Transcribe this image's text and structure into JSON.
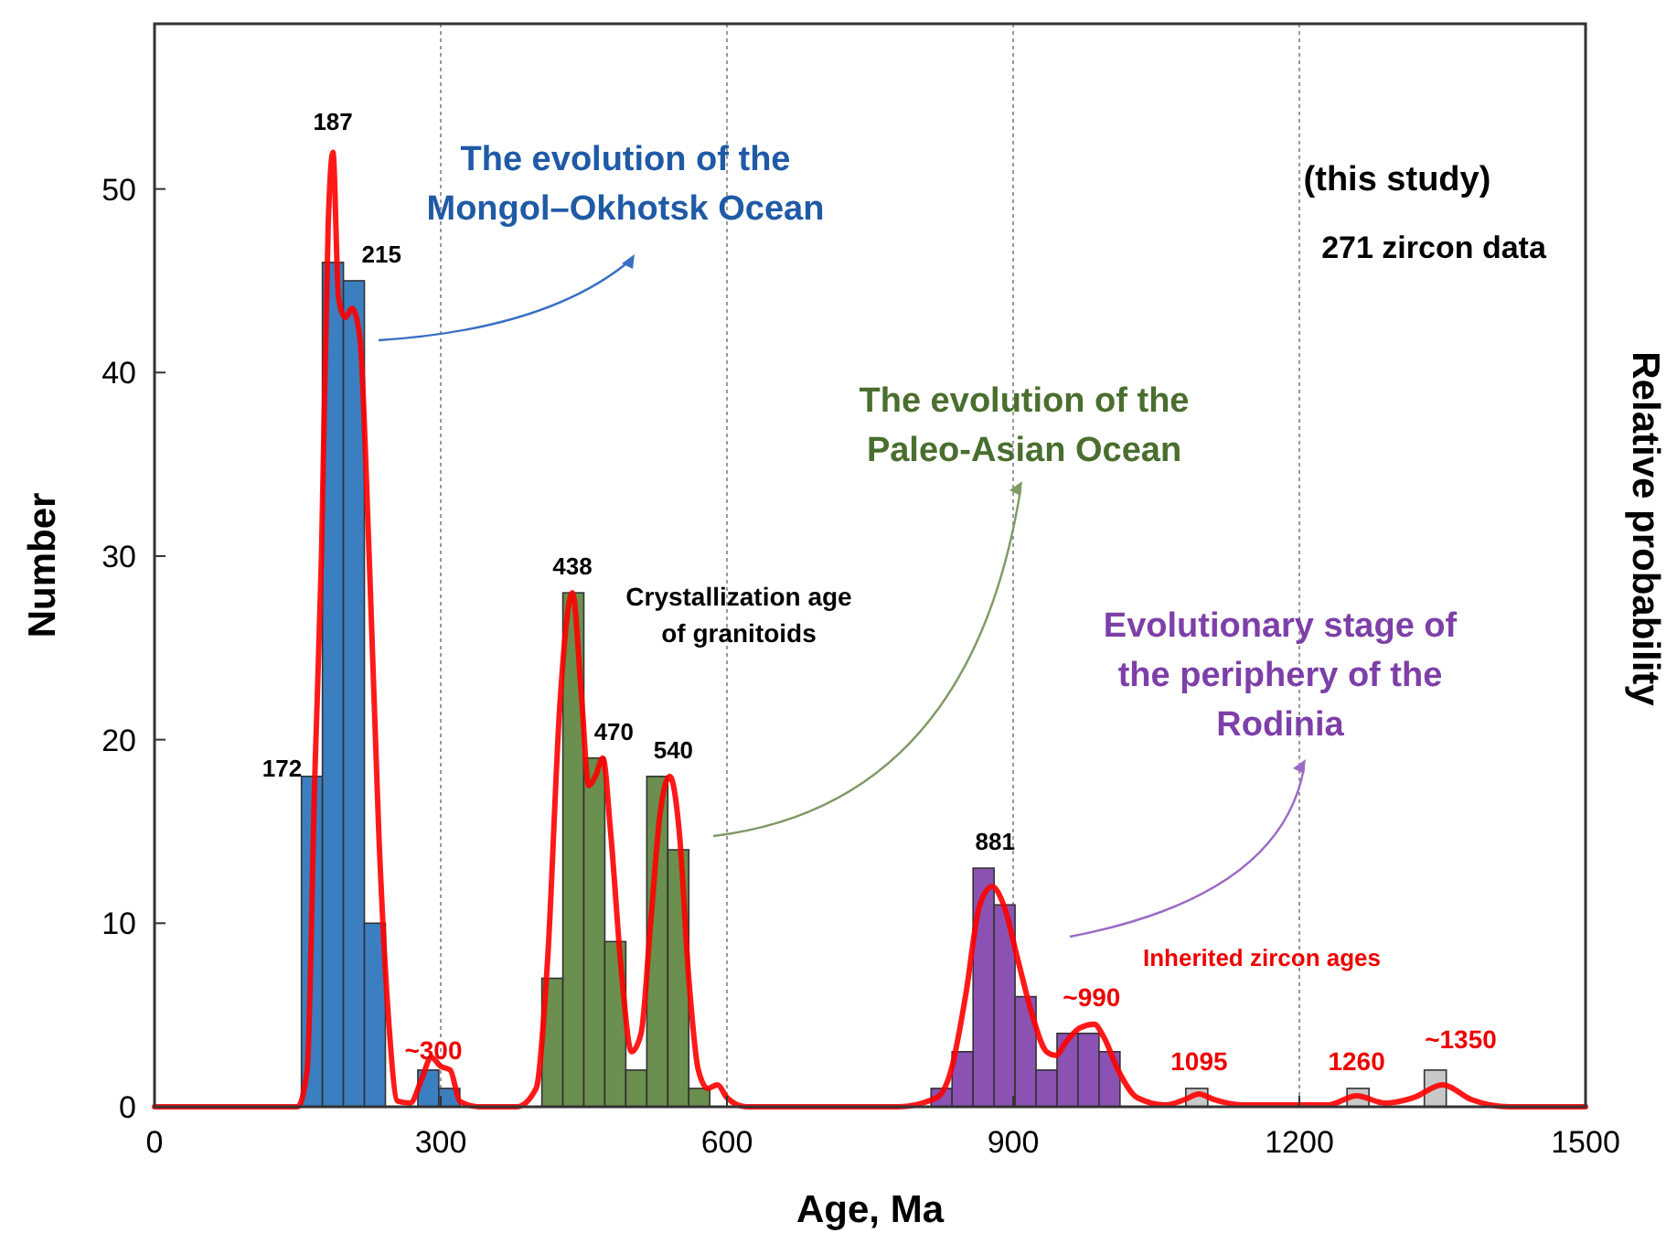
{
  "chart_data": {
    "type": "histogram",
    "xlabel": "Age, Ma",
    "ylabel": "Number",
    "y2label": "Relative probability",
    "bins": [
      154,
      176,
      198,
      220,
      242,
      276,
      298,
      320,
      406,
      428,
      450,
      472,
      494,
      516,
      538,
      560,
      582,
      814,
      836,
      858,
      880,
      902,
      924,
      946,
      968,
      990,
      1012,
      1081,
      1104,
      1250,
      1273,
      1331,
      1354
    ],
    "values": [
      18,
      46,
      45,
      10,
      0,
      2,
      1,
      0,
      7,
      28,
      19,
      9,
      2,
      18,
      14,
      1,
      0,
      1,
      3,
      13,
      11,
      6,
      2,
      4,
      4,
      3,
      0,
      1,
      0,
      1,
      0,
      2
    ],
    "colors": [
      "#3b7fc0",
      "#3b7fc0",
      "#3b7fc0",
      "#3b7fc0",
      null,
      "#3b7fc0",
      "#3b7fc0",
      null,
      "#6a8f4f",
      "#6a8f4f",
      "#6a8f4f",
      "#6a8f4f",
      "#6a8f4f",
      "#6a8f4f",
      "#6a8f4f",
      "#6a8f4f",
      null,
      "#8b52b3",
      "#8b52b3",
      "#8b52b3",
      "#8b52b3",
      "#8b52b3",
      "#8b52b3",
      "#8b52b3",
      "#8b52b3",
      "#8b52b3",
      null,
      "#c8c8c8",
      null,
      "#c8c8c8",
      null,
      "#c8c8c8"
    ],
    "series": [
      {
        "type": "line",
        "color": "#ff0000",
        "x": [
          0,
          150,
          160,
          168,
          175,
          182,
          187,
          193,
          200,
          207,
          215,
          225,
          235,
          245,
          255,
          268,
          280,
          290,
          300,
          310,
          320,
          340,
          380,
          400,
          412,
          425,
          438,
          448,
          455,
          462,
          470,
          478,
          490,
          500,
          510,
          520,
          530,
          540,
          550,
          560,
          570,
          580,
          590,
          600,
          620,
          780,
          820,
          835,
          850,
          865,
          878,
          890,
          905,
          920,
          935,
          945,
          955,
          970,
          985,
          995,
          1010,
          1030,
          1060,
          1080,
          1095,
          1110,
          1140,
          1230,
          1260,
          1290,
          1320,
          1350,
          1380,
          1420,
          1500
        ],
        "values": [
          0,
          0,
          2,
          18,
          30,
          48,
          52,
          44,
          43,
          43.5,
          42,
          30,
          15,
          5,
          0.3,
          0.2,
          1.5,
          2.7,
          2.2,
          2,
          0.3,
          0,
          0,
          1,
          8,
          22,
          28,
          22,
          17.5,
          18,
          19,
          15,
          7,
          3,
          4,
          10,
          16,
          18,
          15,
          7,
          2,
          1,
          1.2,
          0.5,
          0,
          0,
          0.5,
          2,
          6,
          11,
          12,
          11,
          8,
          5,
          3,
          2.8,
          3.5,
          4.3,
          4.5,
          3.8,
          2,
          0.5,
          0.1,
          0.4,
          0.7,
          0.4,
          0.1,
          0.1,
          0.6,
          0.2,
          0.5,
          1.2,
          0.4,
          0,
          0
        ]
      }
    ],
    "xlim": [
      0,
      1500
    ],
    "xticks": [
      0,
      300,
      600,
      900,
      1200,
      1500
    ],
    "ylim": [
      0,
      59
    ],
    "yticks": [
      0,
      10,
      20,
      30,
      40,
      50
    ],
    "grid": "x",
    "annotations": [
      {
        "text": "187",
        "x": 187,
        "y": 52
      },
      {
        "text": "215",
        "x": 215,
        "y": 45
      },
      {
        "text": "172",
        "x": 172,
        "y": 18
      },
      {
        "text": "438",
        "x": 438,
        "y": 28
      },
      {
        "text": "470",
        "x": 470,
        "y": 19
      },
      {
        "text": "540",
        "x": 540,
        "y": 18
      },
      {
        "text": "881",
        "x": 881,
        "y": 13
      },
      {
        "text": "~300",
        "x": 300,
        "y": 2
      },
      {
        "text": "~990",
        "x": 990,
        "y": 4.5
      },
      {
        "text": "1095",
        "x": 1095,
        "y": 1
      },
      {
        "text": "1260",
        "x": 1260,
        "y": 1
      },
      {
        "text": "~1350",
        "x": 1350,
        "y": 2
      },
      "The evolution of the\nMongol–Okhotsk Ocean",
      "(this study)",
      "271 zircon data",
      "The evolution of the\nPaleo-Asian Ocean",
      "Crystallization age\nof granitoids",
      "Evolutionary stage of\nthe periphery of the\nRodinia",
      "Inherited zircon ages"
    ]
  }
}
